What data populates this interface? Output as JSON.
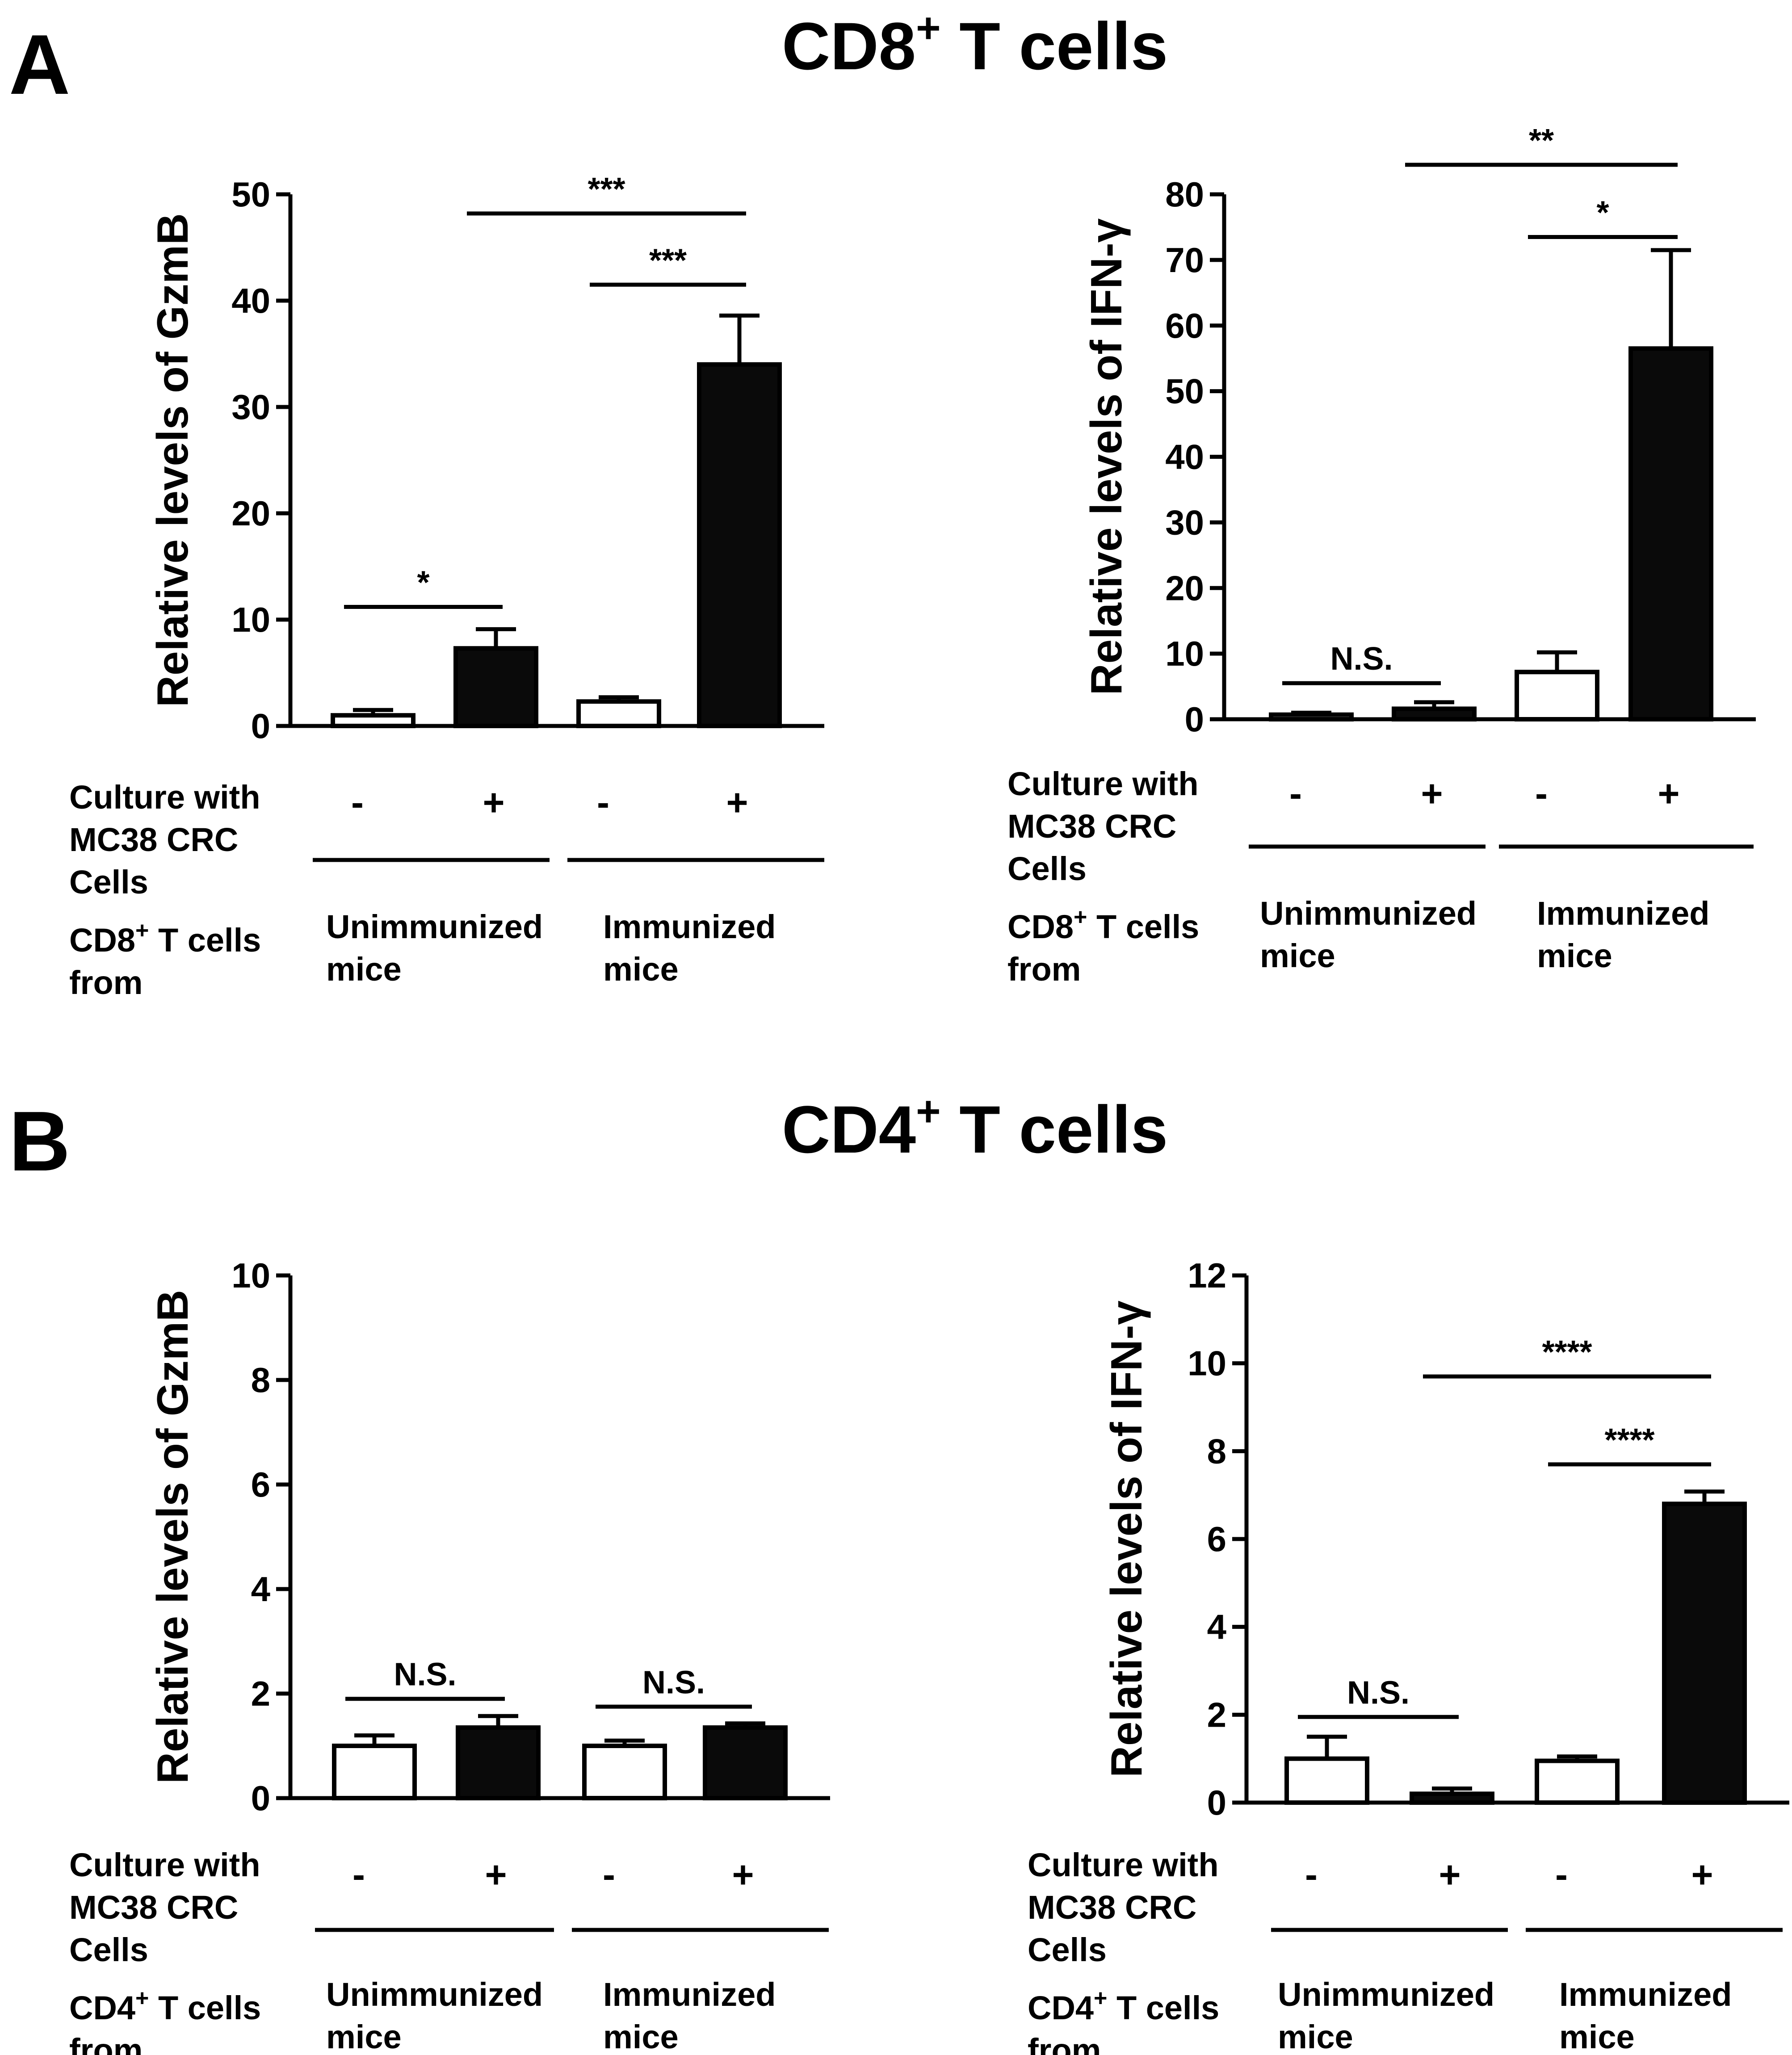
{
  "panels": [
    {
      "letter": "A",
      "title": "CD8",
      "title_sup": "+",
      "title_suffix": " T cells"
    },
    {
      "letter": "B",
      "title": "CD4",
      "title_sup": "+",
      "title_suffix": " T cells"
    }
  ],
  "chart_data": [
    {
      "id": "A-GzmB",
      "type": "bar",
      "panel": "A",
      "ylabel": "Relative levels of GzmB",
      "ylim": [
        0,
        50
      ],
      "yticks": [
        0,
        10,
        20,
        30,
        40,
        50
      ],
      "categories": [
        "Unimmunized -",
        "Unimmunized +",
        "Immunized -",
        "Immunized +"
      ],
      "values": [
        1.0,
        7.3,
        2.3,
        34.0
      ],
      "errors": [
        0.5,
        1.8,
        0.4,
        4.6
      ],
      "fills": [
        "white",
        "black",
        "white",
        "black"
      ],
      "culture_label": [
        "Culture with",
        "MC38 CRC",
        "Cells"
      ],
      "culture_signs": [
        "-",
        "+",
        "-",
        "+"
      ],
      "source_label": "CD8",
      "source_sup": "+",
      "source_label_rest": [
        " T cells",
        "from"
      ],
      "groups": [
        [
          "Unimmunized",
          "mice"
        ],
        [
          "Immunized",
          "mice"
        ]
      ],
      "significance": [
        {
          "from": 0,
          "to": 1,
          "label": "*",
          "y": 11.2
        },
        {
          "from": 2,
          "to": 3,
          "label": "***",
          "y": 41.5
        },
        {
          "from": 1,
          "to": 3,
          "label": "***",
          "y": 48.2
        }
      ]
    },
    {
      "id": "A-IFNg",
      "type": "bar",
      "panel": "A",
      "ylabel": "Relative levels of IFN-γ",
      "ylim": [
        0,
        80
      ],
      "yticks": [
        0,
        10,
        20,
        30,
        40,
        50,
        60,
        70,
        80
      ],
      "categories": [
        "Unimmunized -",
        "Unimmunized +",
        "Immunized -",
        "Immunized +"
      ],
      "values": [
        0.7,
        1.6,
        7.2,
        56.5
      ],
      "errors": [
        0.3,
        1.0,
        3.0,
        15.0
      ],
      "fills": [
        "white",
        "black",
        "white",
        "black"
      ],
      "culture_label": [
        "Culture with",
        "MC38 CRC",
        "Cells"
      ],
      "culture_signs": [
        "-",
        "+",
        "-",
        "+"
      ],
      "source_label": "CD8",
      "source_sup": "+",
      "source_label_rest": [
        " T cells",
        "from"
      ],
      "groups": [
        [
          "Unimmunized",
          "mice"
        ],
        [
          "Immunized",
          "mice"
        ]
      ],
      "significance": [
        {
          "from": 0,
          "to": 1,
          "label": "N.S.",
          "y": 5.5
        },
        {
          "from": 2,
          "to": 3,
          "label": "*",
          "y": 73.5
        },
        {
          "from": 1,
          "to": 3,
          "label": "**",
          "y": 84.5
        }
      ]
    },
    {
      "id": "B-GzmB",
      "type": "bar",
      "panel": "B",
      "ylabel": "Relative levels of GzmB",
      "ylim": [
        0,
        10
      ],
      "yticks": [
        0,
        2,
        4,
        6,
        8,
        10
      ],
      "categories": [
        "Unimmunized -",
        "Unimmunized +",
        "Immunized -",
        "Immunized +"
      ],
      "values": [
        1.0,
        1.35,
        1.0,
        1.35
      ],
      "errors": [
        0.2,
        0.22,
        0.1,
        0.08
      ],
      "fills": [
        "white",
        "black",
        "white",
        "black"
      ],
      "culture_label": [
        "Culture with",
        "MC38 CRC",
        "Cells"
      ],
      "culture_signs": [
        "-",
        "+",
        "-",
        "+"
      ],
      "source_label": "CD4",
      "source_sup": "+",
      "source_label_rest": [
        " T cells",
        "from"
      ],
      "groups": [
        [
          "Unimmunized",
          "mice"
        ],
        [
          "Immunized",
          "mice"
        ]
      ],
      "significance": [
        {
          "from": 0,
          "to": 1,
          "label": "N.S.",
          "y": 1.9
        },
        {
          "from": 2,
          "to": 3,
          "label": "N.S.",
          "y": 1.75
        }
      ]
    },
    {
      "id": "B-IFNg",
      "type": "bar",
      "panel": "B",
      "ylabel": "Relative levels of IFN-γ",
      "ylim": [
        0,
        12
      ],
      "yticks": [
        0,
        2,
        4,
        6,
        8,
        10,
        12
      ],
      "categories": [
        "Unimmunized -",
        "Unimmunized +",
        "Immunized -",
        "Immunized +"
      ],
      "values": [
        1.0,
        0.2,
        0.95,
        6.8
      ],
      "errors": [
        0.5,
        0.12,
        0.1,
        0.28
      ],
      "fills": [
        "white",
        "black",
        "white",
        "black"
      ],
      "culture_label": [
        "Culture with",
        "MC38 CRC",
        "Cells"
      ],
      "culture_signs": [
        "-",
        "+",
        "-",
        "+"
      ],
      "source_label": "CD4",
      "source_sup": "+",
      "source_label_rest": [
        " T cells",
        "from"
      ],
      "groups": [
        [
          "Unimmunized",
          "mice"
        ],
        [
          "Immunized",
          "mice"
        ]
      ],
      "significance": [
        {
          "from": 0,
          "to": 1,
          "label": "N.S.",
          "y": 1.95
        },
        {
          "from": 2,
          "to": 3,
          "label": "****",
          "y": 7.7
        },
        {
          "from": 1,
          "to": 3,
          "label": "****",
          "y": 9.7
        }
      ]
    }
  ]
}
